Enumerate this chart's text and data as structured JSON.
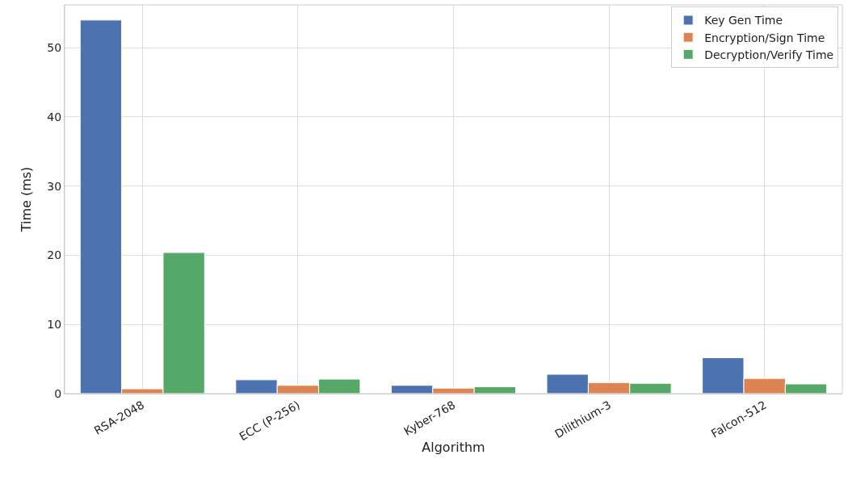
{
  "chart_data": {
    "type": "bar",
    "xlabel": "Algorithm",
    "ylabel": "Time (ms)",
    "categories": [
      "RSA-2048",
      "ECC (P-256)",
      "Kyber-768",
      "Dilithium-3",
      "Falcon-512"
    ],
    "series": [
      {
        "name": "Key Gen Time",
        "color": "#4c72b0",
        "values": [
          54,
          2.0,
          1.2,
          2.8,
          5.2
        ]
      },
      {
        "name": "Encryption/Sign Time",
        "color": "#dd8452",
        "values": [
          0.7,
          1.2,
          0.8,
          1.6,
          2.2
        ]
      },
      {
        "name": "Decryption/Verify Time",
        "color": "#55a868",
        "values": [
          20.4,
          2.1,
          1.0,
          1.5,
          1.4
        ]
      }
    ],
    "ylim": [
      0,
      56.2
    ],
    "yticks": [
      0,
      10,
      20,
      30,
      40,
      50
    ],
    "grid": true,
    "legend": "top right"
  }
}
